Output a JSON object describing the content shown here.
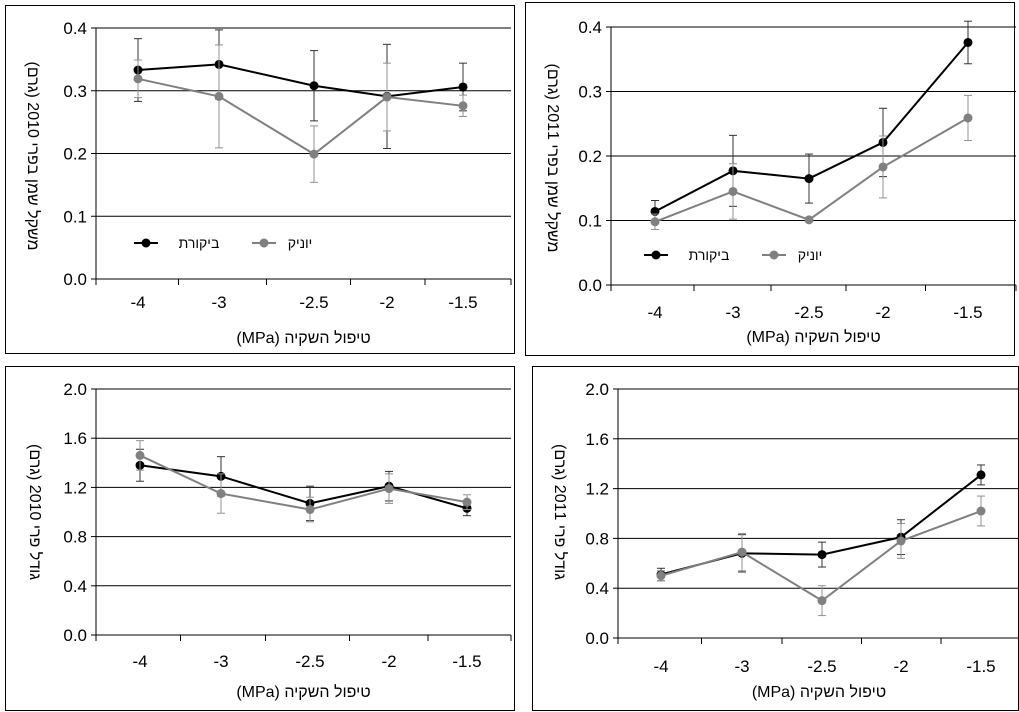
{
  "legend_labels": {
    "control": "ביקורת",
    "yonik": "יוניק"
  },
  "colors": {
    "control": "#000000",
    "yonik": "#808080",
    "error_control": "#333333",
    "error_yonik": "#909090"
  },
  "chart_data": [
    {
      "id": "oil-2010",
      "type": "line",
      "xlabel": "טיפול השקיה (MPa)",
      "ylabel": "משקל שמן בפרי 2010 (גרם)",
      "categories": [
        "-4",
        "-3",
        "-2.5",
        "-2",
        "-1.5"
      ],
      "ylim": [
        0,
        0.4
      ],
      "yticks": [
        "0.0",
        "0.1",
        "0.2",
        "0.3",
        "0.4"
      ],
      "grid": true,
      "legend_position": "lower-left",
      "series": [
        {
          "key": "control",
          "name": "ביקורת",
          "values": [
            0.333,
            0.342,
            0.308,
            0.291,
            0.306
          ],
          "errors": [
            0.05,
            0.055,
            0.056,
            0.083,
            0.038
          ]
        },
        {
          "key": "yonik",
          "name": "יוניק",
          "values": [
            0.319,
            0.291,
            0.199,
            0.29,
            0.276
          ],
          "errors": [
            0.03,
            0.082,
            0.045,
            0.054,
            0.017
          ]
        }
      ]
    },
    {
      "id": "oil-2011",
      "type": "line",
      "xlabel": "טיפול השקיה (MPa)",
      "ylabel": "משקל שמן בפרי 2011 (גרם)",
      "categories": [
        "-4",
        "-3",
        "-2.5",
        "-2",
        "-1.5"
      ],
      "ylim": [
        0,
        0.4
      ],
      "yticks": [
        "0.0",
        "0.1",
        "0.2",
        "0.3",
        "0.4"
      ],
      "grid": true,
      "legend_position": "lower-left",
      "series": [
        {
          "key": "control",
          "name": "ביקורת",
          "values": [
            0.114,
            0.177,
            0.165,
            0.221,
            0.376
          ],
          "errors": [
            0.017,
            0.055,
            0.038,
            0.053,
            0.033
          ]
        },
        {
          "key": "yonik",
          "name": "יוניק",
          "values": [
            0.098,
            0.145,
            0.101,
            0.183,
            0.259
          ],
          "errors": [
            0.012,
            0.043,
            0.003,
            0.048,
            0.035
          ]
        }
      ]
    },
    {
      "id": "size-2010",
      "type": "line",
      "xlabel": "טיפול השקיה (MPa)",
      "ylabel": "גודל פרי 2010 (גרם)",
      "categories": [
        "-4",
        "-3",
        "-2.5",
        "-2",
        "-1.5"
      ],
      "ylim": [
        0,
        2.0
      ],
      "yticks": [
        "0.0",
        "0.4",
        "0.8",
        "1.2",
        "1.6",
        "2.0"
      ],
      "grid": true,
      "legend_position": "none",
      "series": [
        {
          "key": "control",
          "name": "ביקורת",
          "values": [
            1.38,
            1.29,
            1.07,
            1.21,
            1.03
          ],
          "errors": [
            0.13,
            0.16,
            0.14,
            0.12,
            0.06
          ]
        },
        {
          "key": "yonik",
          "name": "יוניק",
          "values": [
            1.46,
            1.15,
            1.02,
            1.19,
            1.08
          ],
          "errors": [
            0.12,
            0.16,
            0.1,
            0.12,
            0.06
          ]
        }
      ]
    },
    {
      "id": "size-2011",
      "type": "line",
      "xlabel": "טיפול השקיה (MPa)",
      "ylabel": "גודל פרי 2011 (גרם)",
      "categories": [
        "-4",
        "-3",
        "-2.5",
        "-2",
        "-1.5"
      ],
      "ylim": [
        0,
        2.0
      ],
      "yticks": [
        "0.0",
        "0.4",
        "0.8",
        "1.2",
        "1.6",
        "2.0"
      ],
      "grid": true,
      "legend_position": "none",
      "series": [
        {
          "key": "control",
          "name": "ביקורת",
          "values": [
            0.51,
            0.68,
            0.67,
            0.81,
            1.31
          ],
          "errors": [
            0.05,
            0.15,
            0.1,
            0.14,
            0.08
          ]
        },
        {
          "key": "yonik",
          "name": "יוניק",
          "values": [
            0.5,
            0.69,
            0.3,
            0.78,
            1.02
          ],
          "errors": [
            0.04,
            0.15,
            0.12,
            0.14,
            0.12
          ]
        }
      ]
    }
  ]
}
